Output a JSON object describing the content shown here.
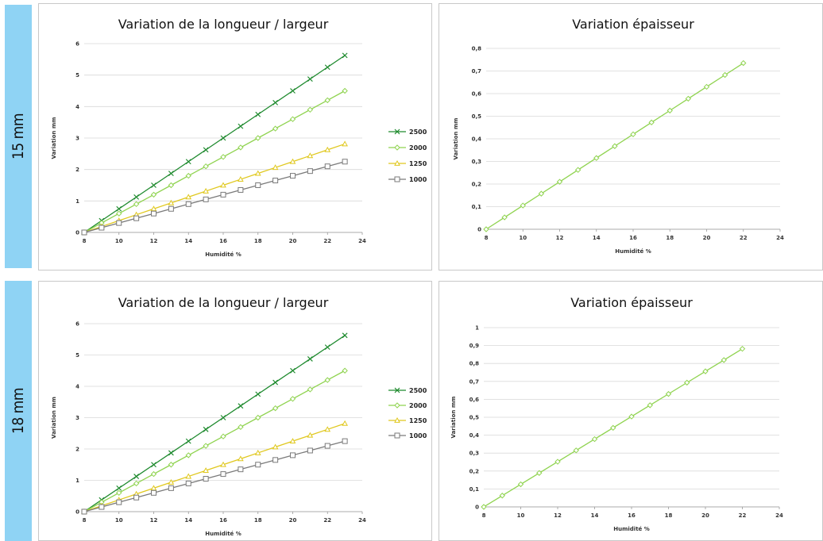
{
  "rows": [
    {
      "label": "15 mm"
    },
    {
      "label": "18 mm"
    }
  ],
  "colors": {
    "sidebar": "#8fd3f4",
    "s2500": "#1e8a2e",
    "s2000": "#8fd34f",
    "s1250": "#e0c81e",
    "s1000": "#7a7a7a"
  },
  "chart_data": [
    {
      "type": "line",
      "title": "Variation de la longueur / largeur",
      "xlabel": "Humidité %",
      "ylabel": "Variation mm",
      "xlim": [
        8,
        24
      ],
      "ylim": [
        0,
        6
      ],
      "xticks": [
        "8",
        "10",
        "12",
        "14",
        "16",
        "18",
        "20",
        "22",
        "24"
      ],
      "yticks": [
        "0",
        "1",
        "2",
        "3",
        "4",
        "5",
        "6"
      ],
      "grid": true,
      "legend": "right",
      "x": [
        8,
        9,
        10,
        11,
        12,
        13,
        14,
        15,
        16,
        17,
        18,
        19,
        20,
        21,
        22,
        23
      ],
      "series": [
        {
          "name": "2500",
          "marker": "x",
          "color": "#1e8a2e",
          "values": [
            0,
            0.375,
            0.75,
            1.125,
            1.5,
            1.875,
            2.25,
            2.625,
            3.0,
            3.375,
            3.75,
            4.125,
            4.5,
            4.875,
            5.25,
            5.625
          ]
        },
        {
          "name": "2000",
          "marker": "diamond",
          "color": "#8fd34f",
          "values": [
            0,
            0.3,
            0.6,
            0.9,
            1.2,
            1.5,
            1.8,
            2.1,
            2.4,
            2.7,
            3.0,
            3.3,
            3.6,
            3.9,
            4.2,
            4.5
          ]
        },
        {
          "name": "1250",
          "marker": "triangle",
          "color": "#e0c81e",
          "values": [
            0,
            0.1875,
            0.375,
            0.5625,
            0.75,
            0.9375,
            1.125,
            1.3125,
            1.5,
            1.6875,
            1.875,
            2.0625,
            2.25,
            2.4375,
            2.625,
            2.8125
          ]
        },
        {
          "name": "1000",
          "marker": "square",
          "color": "#7a7a7a",
          "values": [
            0,
            0.15,
            0.3,
            0.45,
            0.6,
            0.75,
            0.9,
            1.05,
            1.2,
            1.35,
            1.5,
            1.65,
            1.8,
            1.95,
            2.1,
            2.25
          ]
        }
      ]
    },
    {
      "type": "line",
      "title": "Variation épaisseur",
      "xlabel": "Humidité %",
      "ylabel": "Variation mm",
      "xlim": [
        8,
        24
      ],
      "ylim": [
        0,
        0.8
      ],
      "xticks": [
        "8",
        "10",
        "12",
        "14",
        "16",
        "18",
        "20",
        "22",
        "24"
      ],
      "yticks": [
        "0",
        "0,1",
        "0,2",
        "0,3",
        "0,4",
        "0,5",
        "0,6",
        "0,7",
        "0,8"
      ],
      "grid": true,
      "x": [
        8,
        9,
        10,
        11,
        12,
        13,
        14,
        15,
        16,
        17,
        18,
        19,
        20,
        21,
        22
      ],
      "series": [
        {
          "marker": "diamond",
          "color": "#8fd34f",
          "values": [
            0,
            0.0525,
            0.105,
            0.1575,
            0.21,
            0.2625,
            0.315,
            0.3675,
            0.42,
            0.4725,
            0.525,
            0.5775,
            0.63,
            0.6825,
            0.735
          ]
        }
      ]
    },
    {
      "type": "line",
      "title": "Variation de la longueur / largeur",
      "xlabel": "Humidité %",
      "ylabel": "Variation mm",
      "xlim": [
        8,
        24
      ],
      "ylim": [
        0,
        6
      ],
      "xticks": [
        "8",
        "10",
        "12",
        "14",
        "16",
        "18",
        "20",
        "22",
        "24"
      ],
      "yticks": [
        "0",
        "1",
        "2",
        "3",
        "4",
        "5",
        "6"
      ],
      "grid": true,
      "legend": "right",
      "x": [
        8,
        9,
        10,
        11,
        12,
        13,
        14,
        15,
        16,
        17,
        18,
        19,
        20,
        21,
        22,
        23
      ],
      "series": [
        {
          "name": "2500",
          "marker": "x",
          "color": "#1e8a2e",
          "values": [
            0,
            0.375,
            0.75,
            1.125,
            1.5,
            1.875,
            2.25,
            2.625,
            3.0,
            3.375,
            3.75,
            4.125,
            4.5,
            4.875,
            5.25,
            5.625
          ]
        },
        {
          "name": "2000",
          "marker": "diamond",
          "color": "#8fd34f",
          "values": [
            0,
            0.3,
            0.6,
            0.9,
            1.2,
            1.5,
            1.8,
            2.1,
            2.4,
            2.7,
            3.0,
            3.3,
            3.6,
            3.9,
            4.2,
            4.5
          ]
        },
        {
          "name": "1250",
          "marker": "triangle",
          "color": "#e0c81e",
          "values": [
            0,
            0.1875,
            0.375,
            0.5625,
            0.75,
            0.9375,
            1.125,
            1.3125,
            1.5,
            1.6875,
            1.875,
            2.0625,
            2.25,
            2.4375,
            2.625,
            2.8125
          ]
        },
        {
          "name": "1000",
          "marker": "square",
          "color": "#7a7a7a",
          "values": [
            0,
            0.15,
            0.3,
            0.45,
            0.6,
            0.75,
            0.9,
            1.05,
            1.2,
            1.35,
            1.5,
            1.65,
            1.8,
            1.95,
            2.1,
            2.25
          ]
        }
      ]
    },
    {
      "type": "line",
      "title": "Variation épaisseur",
      "xlabel": "Humidité %",
      "ylabel": "Variation mm",
      "xlim": [
        8,
        24
      ],
      "ylim": [
        0,
        1
      ],
      "xticks": [
        "8",
        "10",
        "12",
        "14",
        "16",
        "18",
        "20",
        "22",
        "24"
      ],
      "yticks": [
        "0",
        "0,1",
        "0,2",
        "0,3",
        "0,4",
        "0,5",
        "0,6",
        "0,7",
        "0,8",
        "0,9",
        "1"
      ],
      "grid": true,
      "x": [
        8,
        9,
        10,
        11,
        12,
        13,
        14,
        15,
        16,
        17,
        18,
        19,
        20,
        21,
        22
      ],
      "series": [
        {
          "marker": "diamond",
          "color": "#8fd34f",
          "values": [
            0,
            0.063,
            0.126,
            0.189,
            0.252,
            0.315,
            0.378,
            0.441,
            0.504,
            0.567,
            0.63,
            0.693,
            0.756,
            0.819,
            0.882
          ]
        }
      ]
    }
  ]
}
